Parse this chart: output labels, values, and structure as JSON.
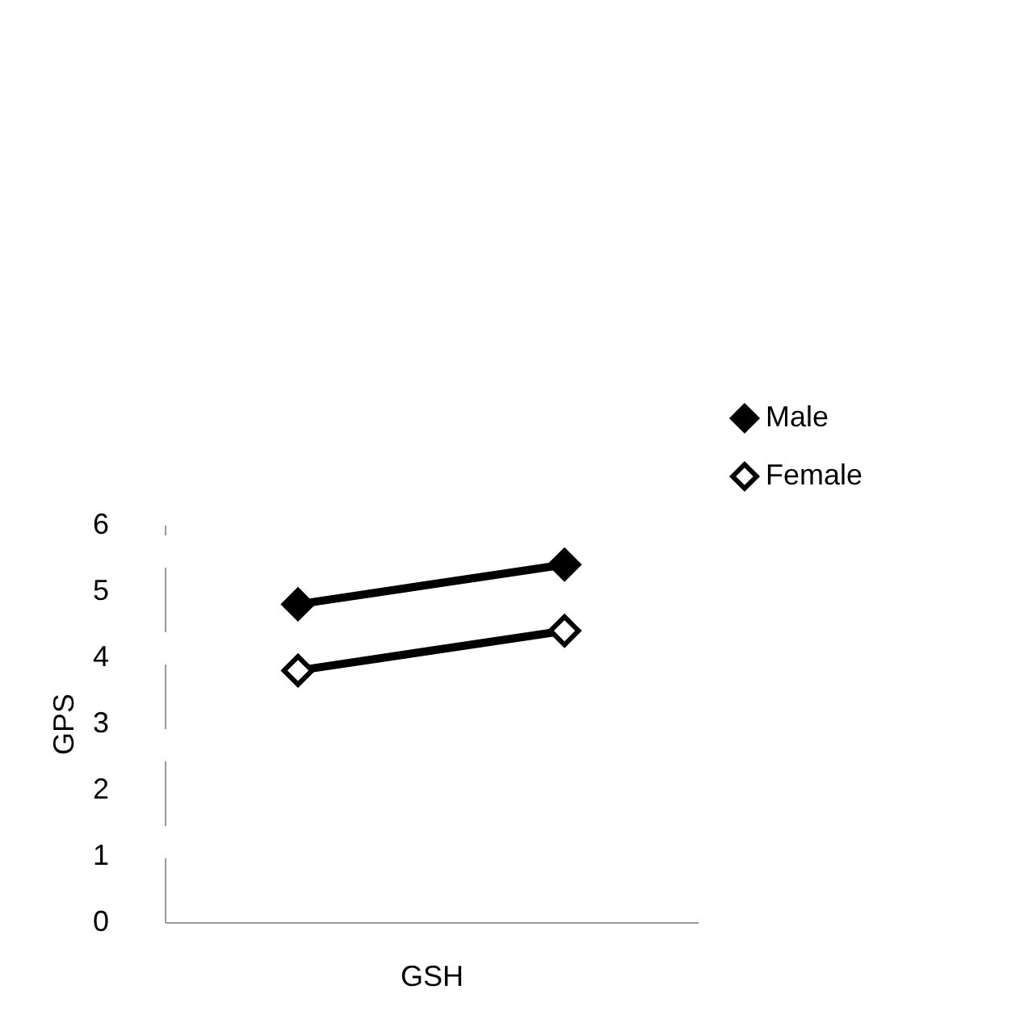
{
  "chart_data": {
    "type": "line",
    "xlabel": "GSH",
    "ylabel": "GPS",
    "categories": [
      null,
      null
    ],
    "series": [
      {
        "name": "Male",
        "color": "#000000",
        "values": [
          4.8,
          5.4
        ]
      },
      {
        "name": "Female",
        "color": "#000000",
        "values": [
          3.8,
          4.4
        ]
      }
    ],
    "ylim": [
      0,
      6
    ],
    "yticks": [
      0,
      1,
      2,
      3,
      4,
      5,
      6
    ],
    "grid": false,
    "legend": "top right",
    "marker": "diamond",
    "line_style": "solid"
  }
}
